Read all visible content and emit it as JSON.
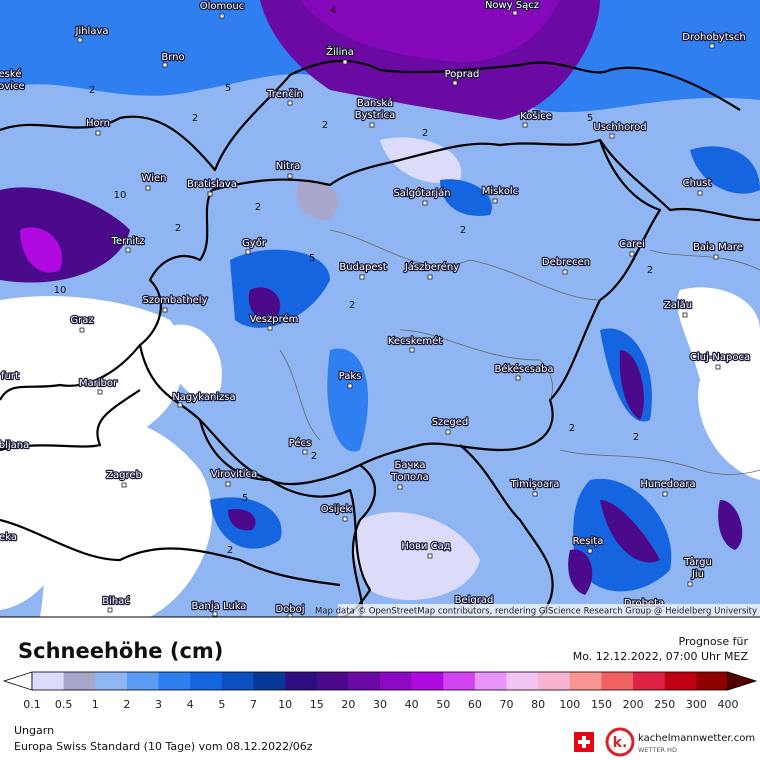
{
  "map": {
    "cities": [
      {
        "label": "Olomouc"
      },
      {
        "label": "Jihlava"
      },
      {
        "label": "Brno"
      },
      {
        "label": "Žilina"
      },
      {
        "label": "Nowy Sącz"
      },
      {
        "label": "Drohobytsch"
      },
      {
        "label": "Trenčín"
      },
      {
        "label": "Poprad"
      },
      {
        "lines": [
          "Banská",
          "Bystrica"
        ]
      },
      {
        "label": "Horn"
      },
      {
        "label": "Košice"
      },
      {
        "label": "Uschhorod"
      },
      {
        "label": "Nitra"
      },
      {
        "label": "Wien"
      },
      {
        "label": "Bratislava"
      },
      {
        "label": "Salgótarján"
      },
      {
        "label": "Miskolc"
      },
      {
        "label": "Chust"
      },
      {
        "label": "Ternitz"
      },
      {
        "label": "Győr"
      },
      {
        "label": "Budapest"
      },
      {
        "label": "Jászberény"
      },
      {
        "label": "Debrecen"
      },
      {
        "label": "Carei"
      },
      {
        "label": "Baia Mare"
      },
      {
        "label": "Szombathely"
      },
      {
        "label": "Graz"
      },
      {
        "label": "Veszprém"
      },
      {
        "label": "Zalău"
      },
      {
        "label": "Kecskemét"
      },
      {
        "label": "Cluj-Napoca"
      },
      {
        "label": "Maribor"
      },
      {
        "label": "Paks"
      },
      {
        "label": "Békéscsaba"
      },
      {
        "label": "Nagykanizsa"
      },
      {
        "label": "Szeged"
      },
      {
        "label": "Pécs"
      },
      {
        "label": "Zagreb"
      },
      {
        "label": "Virovitica"
      },
      {
        "lines": [
          "Бачка",
          "Топола"
        ]
      },
      {
        "label": "Timișoara"
      },
      {
        "label": "Hunedoara"
      },
      {
        "label": "Osijek"
      },
      {
        "label": "Reșița"
      },
      {
        "label": "Нови Сад"
      },
      {
        "lines": [
          "Târgu",
          "Jiu"
        ]
      },
      {
        "label": "Bihać"
      },
      {
        "label": "Banja Luka"
      },
      {
        "label": "Doboj"
      },
      {
        "label": "Belgrad"
      },
      {
        "label": "Drobeta"
      },
      {
        "lines": [
          "eské",
          "jovice"
        ]
      },
      {
        "label": "furt"
      },
      {
        "label": "bljana"
      },
      {
        "label": "eka"
      }
    ],
    "contour_labels": [
      "4",
      "2",
      "5",
      "10",
      "2",
      "2",
      "5",
      "2",
      "2",
      "10",
      "2",
      "5",
      "2",
      "2",
      "2",
      "2",
      "2",
      "5",
      "2",
      "2"
    ],
    "attribution": "Map data © OpenStreetMap contributors, rendering GIScience Research Group @ Heidelberg University"
  },
  "legend": {
    "title": "Schneehöhe (cm)",
    "forecast_label": "Prognose für",
    "forecast_time": "Mo. 12.12.2022, 07:00 Uhr MEZ",
    "ticks": [
      "0.1",
      "0.5",
      "1",
      "2",
      "3",
      "4",
      "5",
      "7",
      "10",
      "15",
      "20",
      "30",
      "40",
      "50",
      "60",
      "70",
      "80",
      "100",
      "150",
      "200",
      "250",
      "300",
      "400"
    ],
    "colors": [
      "#ffffff",
      "#dcdcfa",
      "#a9a6cc",
      "#8fb6f2",
      "#5c9cf2",
      "#307ff0",
      "#1565e0",
      "#0c4fc0",
      "#08379a",
      "#2c0e80",
      "#4b0a8c",
      "#6a0aa2",
      "#8c08c2",
      "#b00ae0",
      "#d244f2",
      "#e894f8",
      "#f2c4f2",
      "#f8b2d2",
      "#f89494",
      "#f06262",
      "#e02244",
      "#c00012",
      "#900000",
      "#520000"
    ],
    "region": "Ungarn",
    "model": "Europa Swiss Standard (10 Tage) vom 08.12.2022/06z",
    "brand": "kachelmannwetter.com",
    "brand_sub": "WETTER HD"
  }
}
